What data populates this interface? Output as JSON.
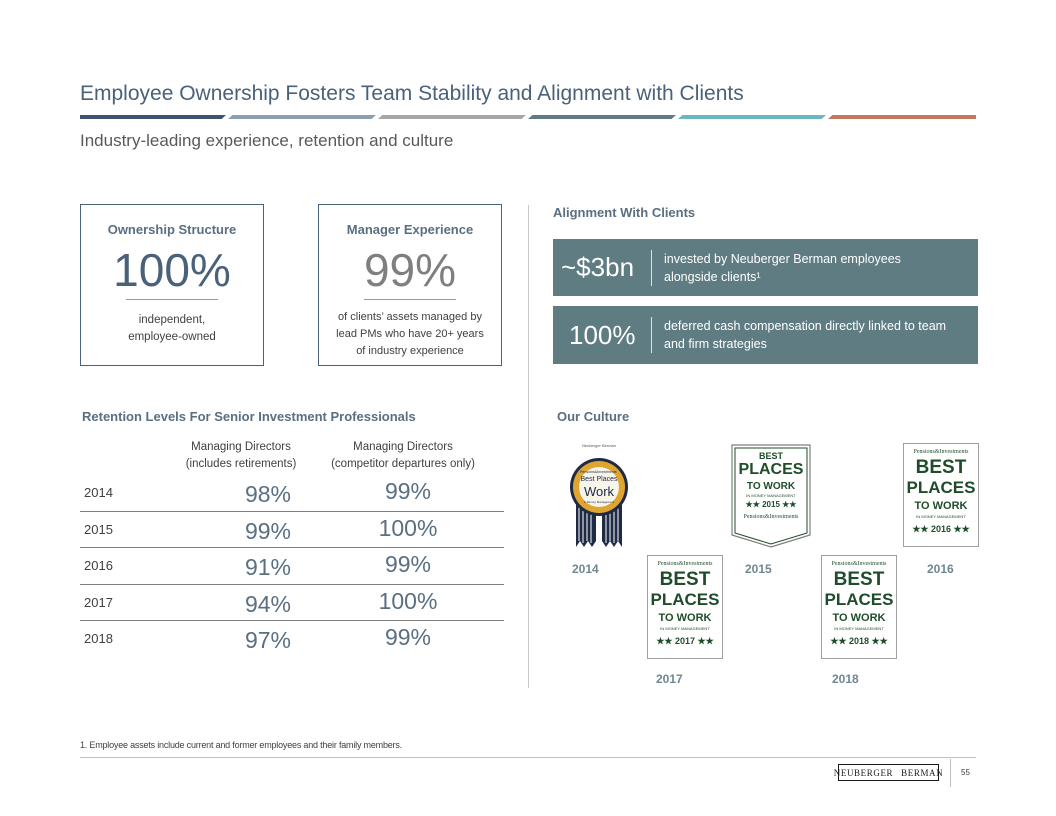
{
  "header": {
    "title": "Employee Ownership Fosters Team Stability and Alignment with Clients",
    "subtitle": "Industry-leading experience, retention and culture",
    "stripe_colors": [
      "#3b5570",
      "#8b9fb0",
      "#a6a6a6",
      "#5f7c82",
      "#6bb7bf",
      "#c6765e"
    ]
  },
  "ownership": {
    "title": "Ownership Structure",
    "value": "100%",
    "desc_line1": "independent,",
    "desc_line2": "employee-owned"
  },
  "experience": {
    "title": "Manager Experience",
    "value": "99%",
    "desc_line1": "of clients’ assets managed by",
    "desc_line2": "lead PMs who have 20+ years",
    "desc_line3": "of industry experience"
  },
  "alignment": {
    "label": "Alignment With Clients",
    "rows": [
      {
        "value": "~$3bn",
        "desc": "invested by Neuberger Berman employees alongside clients¹"
      },
      {
        "value": "100%",
        "desc": "deferred cash compensation directly linked to team and firm strategies"
      }
    ]
  },
  "retention": {
    "label": "Retention Levels For Senior Investment Professionals",
    "col1_line1": "Managing Directors",
    "col1_line2": "(includes retirements)",
    "col2_line1": "Managing Directors",
    "col2_line2": "(competitor departures only)",
    "rows": [
      {
        "year": "2014",
        "v1": "98%",
        "v2": "99%"
      },
      {
        "year": "2015",
        "v1": "99%",
        "v2": "100%"
      },
      {
        "year": "2016",
        "v1": "91%",
        "v2": "99%"
      },
      {
        "year": "2017",
        "v1": "94%",
        "v2": "100%"
      },
      {
        "year": "2018",
        "v1": "97%",
        "v2": "99%"
      }
    ]
  },
  "culture": {
    "label": "Our Culture",
    "badge_2014": {
      "year": "2014",
      "top": "Neuberger Berman",
      "line1": "Pensions&Investments' 2014",
      "line2": "Best Places",
      "line3": "Work",
      "line4": "in Money Management"
    },
    "badge_2015": {
      "year": "2015",
      "line1": "BEST",
      "line2": "PLACES",
      "line3": "TO WORK",
      "line4": "IN MONEY MANAGEMENT",
      "line5": "★★ 2015 ★★",
      "line6": "Pensions&Investments"
    },
    "badge_2016": {
      "year": "2016",
      "pub": "Pensions&Investments",
      "line1": "BEST",
      "line2": "PLACES",
      "line3": "TO WORK",
      "line4": "IN MONEY MANAGEMENT",
      "line5": "★★ 2016 ★★"
    },
    "badge_2017": {
      "year": "2017",
      "pub": "Pensions&Investments",
      "line1": "BEST",
      "line2": "PLACES",
      "line3": "TO WORK",
      "line4": "IN MONEY MANAGEMENT",
      "line5": "★★ 2017 ★★"
    },
    "badge_2018": {
      "year": "2018",
      "pub": "Pensions&Investments",
      "line1": "BEST",
      "line2": "PLACES",
      "line3": "TO WORK",
      "line4": "IN MONEY MANAGEMENT",
      "line5": "★★ 2018 ★★"
    }
  },
  "footer": {
    "footnote": "1. Employee assets include current and former employees and their family members.",
    "logo_left": "NEUBERGER",
    "logo_right": "BERMAN",
    "page_number": "55"
  }
}
